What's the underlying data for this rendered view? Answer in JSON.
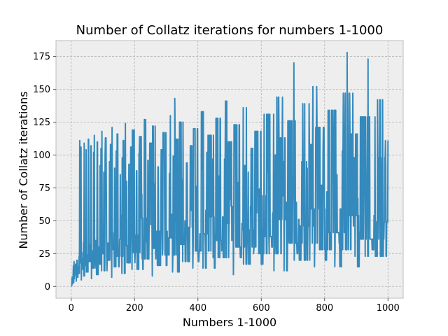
{
  "chart_data": {
    "type": "line",
    "title": "Number of Collatz iterations for numbers 1-1000",
    "xlabel": "Numbers 1-1000",
    "ylabel": "Number of Collatz iterations",
    "xlim": [
      -48,
      1048
    ],
    "ylim": [
      -8.9,
      187
    ],
    "xticks": [
      0,
      200,
      400,
      600,
      800,
      1000
    ],
    "yticks": [
      0,
      25,
      50,
      75,
      100,
      125,
      150,
      175
    ],
    "grid": true,
    "legend": "none",
    "series": [
      {
        "rule": "Collatz total stopping time of n",
        "x_start": 1,
        "x_end": 1000,
        "color": "#348abd"
      }
    ]
  },
  "style": {
    "plot_background": "#eeeeee",
    "grid_color": "#b2b2b2",
    "frame_color": "#bcbcbc",
    "line_color": "#348abd"
  }
}
